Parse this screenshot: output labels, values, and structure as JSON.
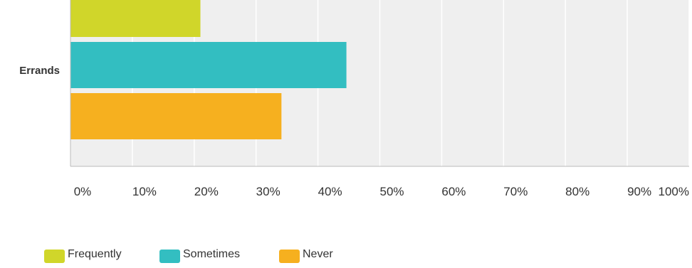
{
  "chart_data": {
    "type": "bar",
    "orientation": "horizontal",
    "categories": [
      "Errands"
    ],
    "series": [
      {
        "name": "Frequently",
        "values": [
          21
        ],
        "color": "#d0d62a"
      },
      {
        "name": "Sometimes",
        "values": [
          44.6
        ],
        "color": "#33bec1"
      },
      {
        "name": "Never",
        "values": [
          34.1
        ],
        "color": "#f6b01f"
      }
    ],
    "xlim": [
      0,
      100
    ],
    "xticks": [
      "0%",
      "10%",
      "20%",
      "30%",
      "40%",
      "50%",
      "60%",
      "70%",
      "80%",
      "90%",
      "100%"
    ],
    "grid": true,
    "legend_position": "bottom-left",
    "plot_background": "#efefef",
    "gridline_color": "#ffffff"
  }
}
